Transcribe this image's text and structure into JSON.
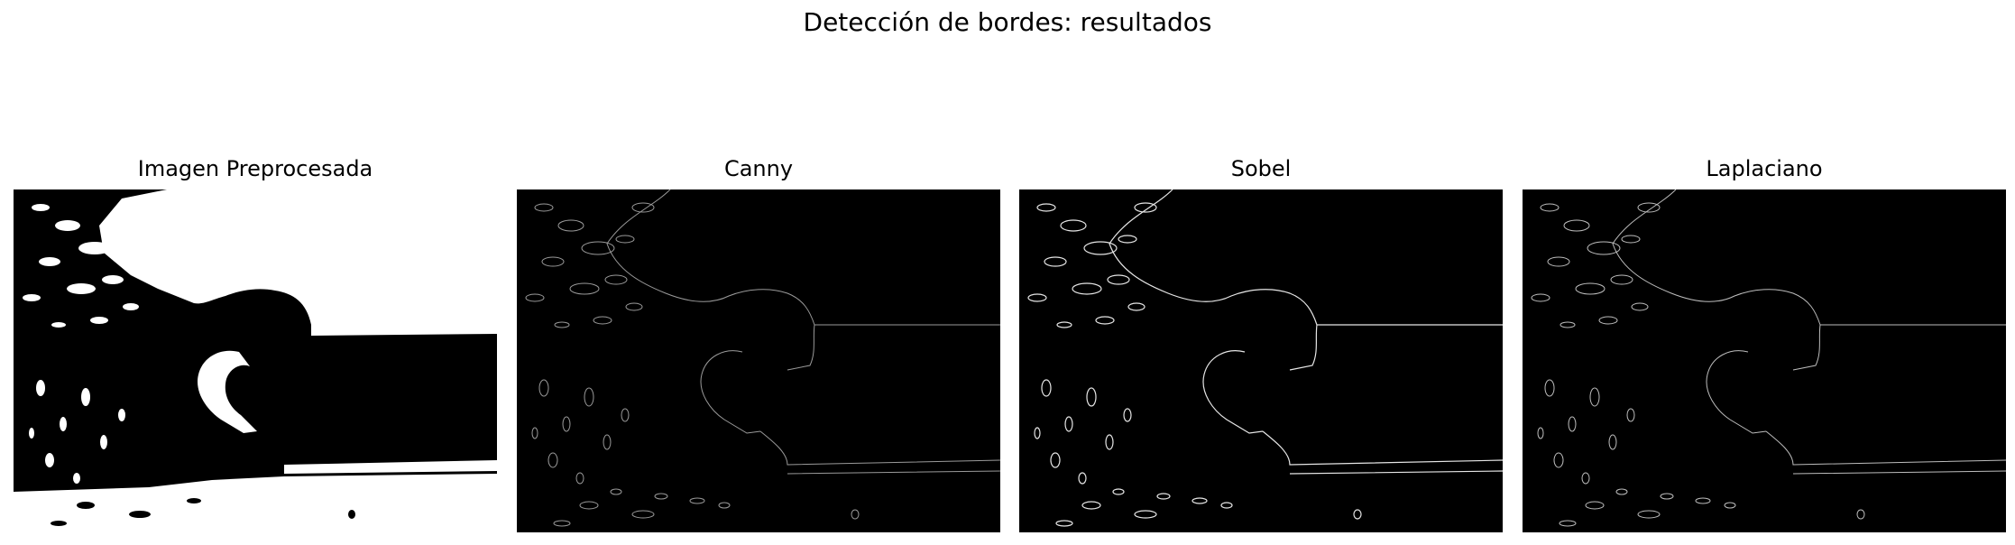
{
  "figure": {
    "title": "Detección de bordes: resultados",
    "panels": [
      {
        "title": "Imagen Preprocesada",
        "kind": "binary"
      },
      {
        "title": "Canny",
        "kind": "edges",
        "edge_color": "#9a9a9a"
      },
      {
        "title": "Sobel",
        "kind": "edges",
        "edge_color": "#e6e6e6"
      },
      {
        "title": "Laplaciano",
        "kind": "edges",
        "edge_color": "#bdbdbd"
      }
    ]
  }
}
